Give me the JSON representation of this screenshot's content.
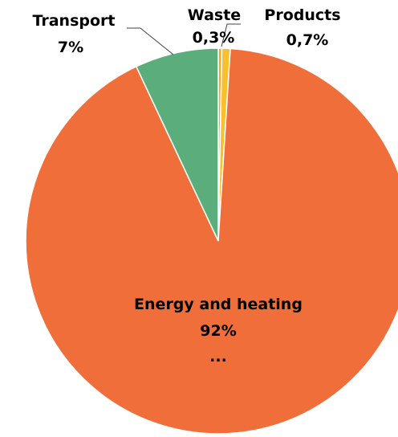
{
  "chart_data": {
    "type": "pie",
    "slices": [
      {
        "label": "Waste",
        "value_label": "0,3%",
        "value": 0.3,
        "color": "#F5A820"
      },
      {
        "label": "Products",
        "value_label": "0,7%",
        "value": 0.7,
        "color": "#F7C12E"
      },
      {
        "label": "Energy and heating",
        "value_label": "92%",
        "value": 92,
        "color": "#F06E3A",
        "extra_label": "..."
      },
      {
        "label": "Transport",
        "value_label": "7%",
        "value": 7,
        "color": "#5BAD7C"
      }
    ],
    "start_angle_deg": 0,
    "direction": "clockwise",
    "legend": "none",
    "slice_border_color": "#ffffff"
  }
}
